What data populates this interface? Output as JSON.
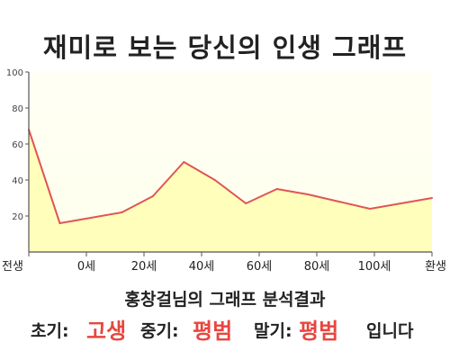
{
  "title": "재미로 보는 당신의 인생 그래프",
  "subtitle": "홍창걸님의 그래프 분석결과",
  "result": {
    "early_label": "초기:",
    "early_value": "고생",
    "mid_label": "중기:",
    "mid_value": "평범",
    "late_label": "말기:",
    "late_value": "평범",
    "ending": "입니다"
  },
  "colors": {
    "line": "#e05555",
    "area": "#ffffbb",
    "plot_bg_top": "#fffff0",
    "highlight": "#e8463f"
  },
  "chart_data": {
    "type": "area",
    "x_tick_labels": [
      "전생",
      "0세",
      "20세",
      "40세",
      "60세",
      "80세",
      "100세",
      "환생"
    ],
    "x_ticks": [
      "전생",
      "0",
      "20",
      "40",
      "60",
      "80",
      "100",
      "환생"
    ],
    "x": [
      "전생",
      0,
      10,
      20,
      30,
      40,
      50,
      60,
      70,
      80,
      90,
      100,
      110,
      "환생"
    ],
    "values": [
      68,
      16,
      19,
      22,
      31,
      50,
      40,
      27,
      35,
      32,
      28,
      24,
      27,
      30
    ],
    "ylim": [
      0,
      100
    ],
    "y_ticks": [
      20,
      40,
      60,
      80,
      100
    ],
    "grid": false
  }
}
